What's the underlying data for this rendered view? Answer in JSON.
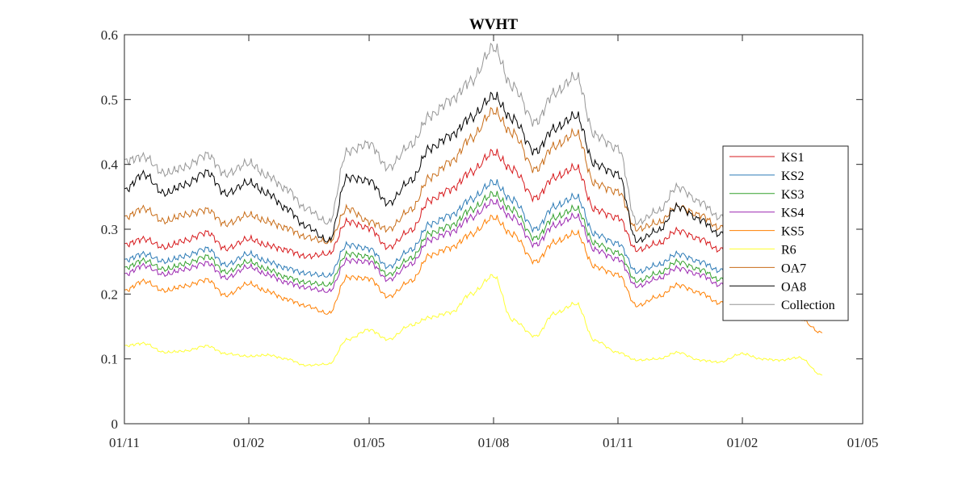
{
  "chart_data": {
    "type": "line",
    "title": "WVHT",
    "xlabel": "",
    "ylabel": "",
    "ylim": [
      0,
      0.6
    ],
    "y_ticks": [
      "0",
      "0.1",
      "0.2",
      "0.3",
      "0.4",
      "0.5",
      "0.6"
    ],
    "x_ticks": [
      "01/11",
      "01/02",
      "01/05",
      "01/08",
      "01/11",
      "01/02",
      "01/05"
    ],
    "x_tick_dates": [
      "2013-11-01",
      "2014-02-01",
      "2014-05-01",
      "2014-08-01",
      "2014-11-01",
      "2015-02-01",
      "2015-05-01"
    ],
    "grid": false,
    "legend_position": "right",
    "x": [
      "2013-11-01",
      "2013-11-15",
      "2013-12-01",
      "2013-12-15",
      "2014-01-01",
      "2014-01-15",
      "2014-02-01",
      "2014-02-15",
      "2014-03-01",
      "2014-03-15",
      "2014-04-01",
      "2014-04-15",
      "2014-05-01",
      "2014-05-15",
      "2014-06-01",
      "2014-06-15",
      "2014-07-01",
      "2014-07-15",
      "2014-08-01",
      "2014-08-15",
      "2014-09-01",
      "2014-09-15",
      "2014-10-01",
      "2014-10-15",
      "2014-11-01",
      "2014-11-15",
      "2014-12-01",
      "2014-12-15",
      "2015-01-01",
      "2015-01-15",
      "2015-02-01",
      "2015-02-15",
      "2015-03-01",
      "2015-03-15",
      "2015-04-01"
    ],
    "series": [
      {
        "name": "KS1",
        "color": "#d7191c",
        "values": [
          0.276,
          0.285,
          0.272,
          0.282,
          0.295,
          0.27,
          0.285,
          0.275,
          0.268,
          0.258,
          0.262,
          0.312,
          0.302,
          0.272,
          0.298,
          0.345,
          0.362,
          0.388,
          0.418,
          0.392,
          0.348,
          0.38,
          0.395,
          0.33,
          0.318,
          0.268,
          0.278,
          0.298,
          0.285,
          0.268,
          0.288,
          0.298,
          0.272,
          0.246,
          0.228
        ]
      },
      {
        "name": "KS2",
        "color": "#2c7bb6",
        "values": [
          0.252,
          0.262,
          0.25,
          0.258,
          0.27,
          0.245,
          0.262,
          0.25,
          0.24,
          0.232,
          0.228,
          0.276,
          0.27,
          0.242,
          0.268,
          0.308,
          0.322,
          0.346,
          0.372,
          0.345,
          0.3,
          0.335,
          0.35,
          0.292,
          0.278,
          0.234,
          0.245,
          0.262,
          0.25,
          0.236,
          0.252,
          0.262,
          0.24,
          0.212,
          0.192
        ]
      },
      {
        "name": "KS3",
        "color": "#33a02c",
        "values": [
          0.24,
          0.252,
          0.238,
          0.246,
          0.258,
          0.234,
          0.25,
          0.238,
          0.226,
          0.218,
          0.214,
          0.262,
          0.258,
          0.23,
          0.255,
          0.294,
          0.306,
          0.33,
          0.354,
          0.33,
          0.286,
          0.318,
          0.332,
          0.278,
          0.264,
          0.22,
          0.232,
          0.25,
          0.238,
          0.222,
          0.24,
          0.25,
          0.228,
          0.2,
          0.18
        ]
      },
      {
        "name": "KS4",
        "color": "#9b27b0",
        "values": [
          0.23,
          0.244,
          0.23,
          0.238,
          0.248,
          0.225,
          0.242,
          0.23,
          0.218,
          0.21,
          0.204,
          0.252,
          0.25,
          0.222,
          0.246,
          0.284,
          0.296,
          0.318,
          0.342,
          0.318,
          0.276,
          0.306,
          0.32,
          0.268,
          0.254,
          0.212,
          0.224,
          0.24,
          0.23,
          0.214,
          0.232,
          0.24,
          0.22,
          0.192,
          0.168
        ]
      },
      {
        "name": "KS5",
        "color": "#ff7f00",
        "values": [
          0.205,
          0.22,
          0.205,
          0.212,
          0.222,
          0.198,
          0.216,
          0.204,
          0.192,
          0.182,
          0.17,
          0.226,
          0.224,
          0.196,
          0.22,
          0.26,
          0.272,
          0.292,
          0.318,
          0.292,
          0.25,
          0.28,
          0.294,
          0.242,
          0.23,
          0.182,
          0.196,
          0.214,
          0.202,
          0.186,
          0.204,
          0.214,
          0.192,
          0.162,
          0.14
        ]
      },
      {
        "name": "R6",
        "color": "#ffff33",
        "values": [
          0.12,
          0.124,
          0.11,
          0.112,
          0.12,
          0.108,
          0.104,
          0.106,
          0.1,
          0.09,
          0.092,
          0.13,
          0.145,
          0.13,
          0.152,
          0.164,
          0.172,
          0.2,
          0.228,
          0.16,
          0.135,
          0.17,
          0.185,
          0.128,
          0.11,
          0.098,
          0.1,
          0.11,
          0.098,
          0.095,
          0.108,
          0.1,
          0.098,
          0.102,
          0.075
        ]
      },
      {
        "name": "OA7",
        "color": "#c86c17",
        "values": [
          0.318,
          0.332,
          0.312,
          0.322,
          0.33,
          0.308,
          0.322,
          0.312,
          0.302,
          0.288,
          0.28,
          0.332,
          0.312,
          0.3,
          0.33,
          0.38,
          0.405,
          0.44,
          0.482,
          0.448,
          0.392,
          0.428,
          0.448,
          0.37,
          0.358,
          0.3,
          0.31,
          0.335,
          0.322,
          0.302,
          0.322,
          0.335,
          0.305,
          0.272,
          0.25
        ]
      },
      {
        "name": "OA8",
        "color": "#000000",
        "values": [
          0.36,
          0.385,
          0.355,
          0.368,
          0.388,
          0.355,
          0.372,
          0.355,
          0.332,
          0.305,
          0.282,
          0.38,
          0.375,
          0.34,
          0.375,
          0.425,
          0.445,
          0.472,
          0.505,
          0.47,
          0.42,
          0.455,
          0.475,
          0.4,
          0.385,
          0.282,
          0.298,
          0.335,
          0.315,
          0.292,
          0.318,
          0.332,
          0.305,
          0.265,
          0.24
        ]
      },
      {
        "name": "Collection",
        "color": "#969696",
        "values": [
          0.405,
          0.412,
          0.386,
          0.395,
          0.415,
          0.385,
          0.402,
          0.382,
          0.362,
          0.332,
          0.31,
          0.42,
          0.432,
          0.395,
          0.43,
          0.475,
          0.5,
          0.528,
          0.58,
          0.52,
          0.465,
          0.51,
          0.535,
          0.445,
          0.425,
          0.31,
          0.328,
          0.365,
          0.342,
          0.318,
          0.348,
          0.362,
          0.335,
          0.292,
          0.265
        ]
      }
    ]
  }
}
